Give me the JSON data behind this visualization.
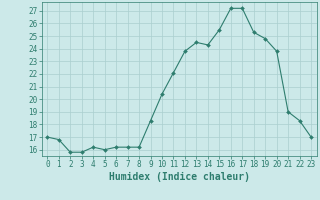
{
  "x": [
    0,
    1,
    2,
    3,
    4,
    5,
    6,
    7,
    8,
    9,
    10,
    11,
    12,
    13,
    14,
    15,
    16,
    17,
    18,
    19,
    20,
    21,
    22,
    23
  ],
  "y": [
    17.0,
    16.8,
    15.8,
    15.8,
    16.2,
    16.0,
    16.2,
    16.2,
    16.2,
    18.3,
    20.4,
    22.1,
    23.8,
    24.5,
    24.3,
    25.5,
    27.2,
    27.2,
    25.3,
    24.8,
    23.8,
    19.0,
    18.3,
    17.0
  ],
  "line_color": "#2e7d6e",
  "marker": "D",
  "marker_size": 2.0,
  "bg_color": "#cce9e9",
  "grid_color": "#aacfcf",
  "xlabel": "Humidex (Indice chaleur)",
  "ylim": [
    15.5,
    27.7
  ],
  "xlim": [
    -0.5,
    23.5
  ],
  "yticks": [
    16,
    17,
    18,
    19,
    20,
    21,
    22,
    23,
    24,
    25,
    26,
    27
  ],
  "xticks": [
    0,
    1,
    2,
    3,
    4,
    5,
    6,
    7,
    8,
    9,
    10,
    11,
    12,
    13,
    14,
    15,
    16,
    17,
    18,
    19,
    20,
    21,
    22,
    23
  ],
  "tick_label_fontsize": 5.5,
  "xlabel_fontsize": 7.0
}
